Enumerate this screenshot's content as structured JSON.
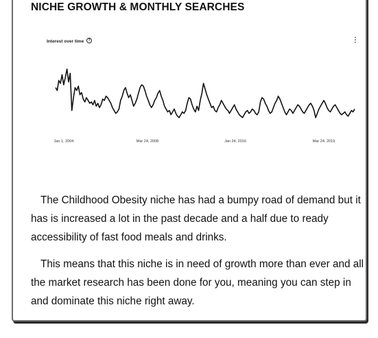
{
  "heading": "NICHE GROWTH & MONTHLY SEARCHES",
  "chart_data": {
    "type": "line",
    "title": "Interest over time",
    "x_tick_labels": [
      "Jan 1, 2004",
      "Mar 24, 2008",
      "Jan 24, 2016",
      "Mar 24, 2019"
    ],
    "series": [
      {
        "values": [
          62,
          58,
          72,
          68,
          80,
          66,
          76,
          88,
          70,
          82,
          30,
          48,
          62,
          58,
          64,
          52,
          55,
          46,
          42,
          48,
          44,
          40,
          42,
          38,
          44,
          36,
          40,
          34,
          38,
          46,
          44,
          50,
          48,
          44,
          40,
          34,
          30,
          26,
          28,
          32,
          44,
          50,
          58,
          62,
          54,
          48,
          52,
          44,
          36,
          40,
          46,
          54,
          62,
          66,
          64,
          58,
          50,
          44,
          38,
          34,
          38,
          44,
          48,
          54,
          58,
          50,
          44,
          36,
          32,
          28,
          30,
          24,
          28,
          32,
          26,
          22,
          20,
          24,
          28,
          26,
          30,
          40,
          48,
          46,
          38,
          32,
          28,
          36,
          30,
          44,
          54,
          68,
          60,
          52,
          46,
          40,
          34,
          36,
          30,
          28,
          34,
          38,
          44,
          40,
          36,
          32,
          30,
          26,
          30,
          34,
          38,
          32,
          28,
          24,
          22,
          20,
          24,
          28,
          30,
          26,
          28,
          32,
          30,
          26,
          24,
          28,
          42,
          48,
          46,
          40,
          36,
          30,
          26,
          28,
          34,
          40,
          44,
          50,
          46,
          40,
          34,
          28,
          24,
          28,
          32,
          30,
          26,
          30,
          34,
          38,
          36,
          32,
          28,
          26,
          30,
          34,
          38,
          40,
          36,
          30,
          20,
          26,
          32,
          36,
          40,
          44,
          40,
          34,
          30,
          28,
          32,
          36,
          38,
          34,
          30,
          26,
          24,
          26,
          28,
          24,
          22,
          26,
          30,
          28,
          32
        ]
      }
    ],
    "ylim": [
      0,
      100
    ],
    "grid": false,
    "legend": "none"
  },
  "paragraphs": [
    "The Childhood Obesity niche has had a bumpy road of demand but it has is increased a lot in the past decade and a half due to ready accessibility of fast food meals and drinks.",
    "This means that this niche is in need of growth more than ever and all the market research has been done for you, meaning you can step in and dominate this niche right away."
  ],
  "icons": {
    "help": "help-circle-icon",
    "menu": "vertical-ellipsis-icon"
  }
}
